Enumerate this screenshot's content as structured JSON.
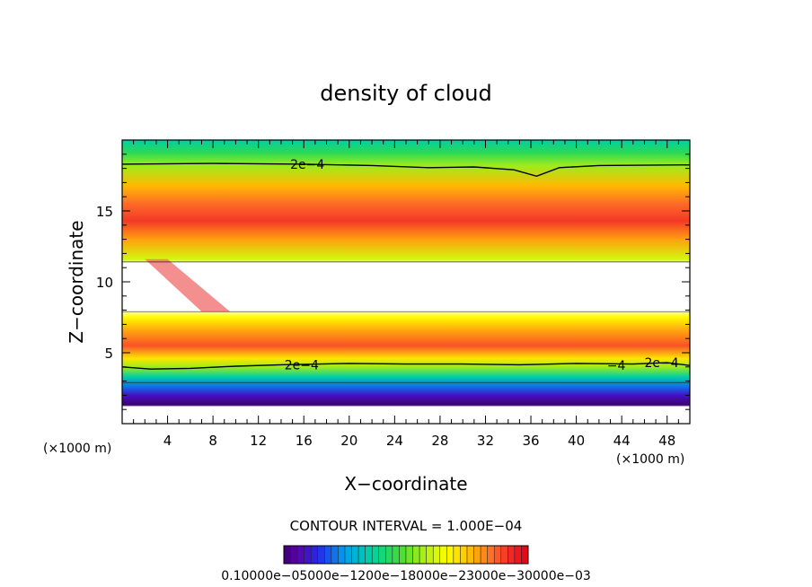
{
  "chart_data": {
    "type": "heatmap",
    "title": "density of cloud",
    "xlabel": "X−coordinate",
    "ylabel": "Z−coordinate",
    "x_unit_left": "(×1000 m)",
    "x_unit_right": "(×1000 m)",
    "xlim": [
      0,
      50
    ],
    "ylim": [
      0,
      20
    ],
    "xticks": [
      4,
      8,
      12,
      16,
      20,
      24,
      28,
      32,
      36,
      40,
      44,
      48
    ],
    "yticks": [
      5,
      10,
      15
    ],
    "contour_interval_text": "CONTOUR INTERVAL = 1.000E−04",
    "contour_labels": [
      {
        "text": "2e−4",
        "x": 14.8,
        "y": 18.3
      },
      {
        "text": "2e−4",
        "x": 14.3,
        "y": 4.15
      },
      {
        "text": "2e−4",
        "x": 46.0,
        "y": 4.3
      },
      {
        "text": "−4",
        "x": 42.7,
        "y": 4.1
      }
    ],
    "contour_lines": [
      {
        "value": 0.0002,
        "points": [
          [
            0,
            18.3
          ],
          [
            8,
            18.35
          ],
          [
            16,
            18.3
          ],
          [
            22,
            18.2
          ],
          [
            27,
            18.05
          ],
          [
            31,
            18.1
          ],
          [
            34.5,
            17.9
          ],
          [
            36.5,
            17.45
          ],
          [
            38.5,
            18.05
          ],
          [
            42,
            18.2
          ],
          [
            50,
            18.25
          ]
        ]
      },
      {
        "value": 0.0002,
        "points": [
          [
            0,
            4.0
          ],
          [
            2.5,
            3.85
          ],
          [
            6,
            3.9
          ],
          [
            10,
            4.05
          ],
          [
            14,
            4.15
          ],
          [
            20,
            4.25
          ],
          [
            25,
            4.2
          ],
          [
            30,
            4.2
          ],
          [
            35,
            4.15
          ],
          [
            40,
            4.25
          ],
          [
            45,
            4.2
          ],
          [
            48,
            4.3
          ],
          [
            50,
            4.1
          ]
        ]
      }
    ],
    "field_profile": [
      {
        "z": 0,
        "density": 0.0
      },
      {
        "z": 1.2,
        "density": 0.0
      },
      {
        "z": 1.3,
        "density": 1e-05
      },
      {
        "z": 2.0,
        "density": 4e-05
      },
      {
        "z": 2.6,
        "density": 8e-05
      },
      {
        "z": 3.3,
        "density": 0.00013
      },
      {
        "z": 4.0,
        "density": 0.0002
      },
      {
        "z": 4.6,
        "density": 0.00025
      },
      {
        "z": 5.5,
        "density": 0.00031
      },
      {
        "z": 6.5,
        "density": 0.00028
      },
      {
        "z": 7.5,
        "density": 0.00024
      },
      {
        "z": 8.1,
        "density": 0.0
      },
      {
        "z": 11.2,
        "density": 0.0
      },
      {
        "z": 11.6,
        "density": 0.00022
      },
      {
        "z": 13.0,
        "density": 0.00028
      },
      {
        "z": 14.3,
        "density": 0.00032
      },
      {
        "z": 15.5,
        "density": 0.0003
      },
      {
        "z": 16.8,
        "density": 0.00027
      },
      {
        "z": 18.2,
        "density": 0.0002
      },
      {
        "z": 19.1,
        "density": 0.00016
      },
      {
        "z": 20.0,
        "density": 0.00013
      }
    ],
    "clear_region": {
      "z_bottom": 7.9,
      "z_top": 11.4,
      "x_from": 0,
      "x_to": 50
    },
    "colorbar": {
      "min": 1e-05,
      "max": 0.00035,
      "tick_labels": [
        "0.1000e−05",
        "0.6000e−04",
        "0.1200e−03",
        "0.1800e−03",
        "0.2300e−03",
        "0.3000e−03"
      ],
      "label_string": "0.10000e−05000e−1200e−18000e−23000e−30000e−03"
    }
  }
}
